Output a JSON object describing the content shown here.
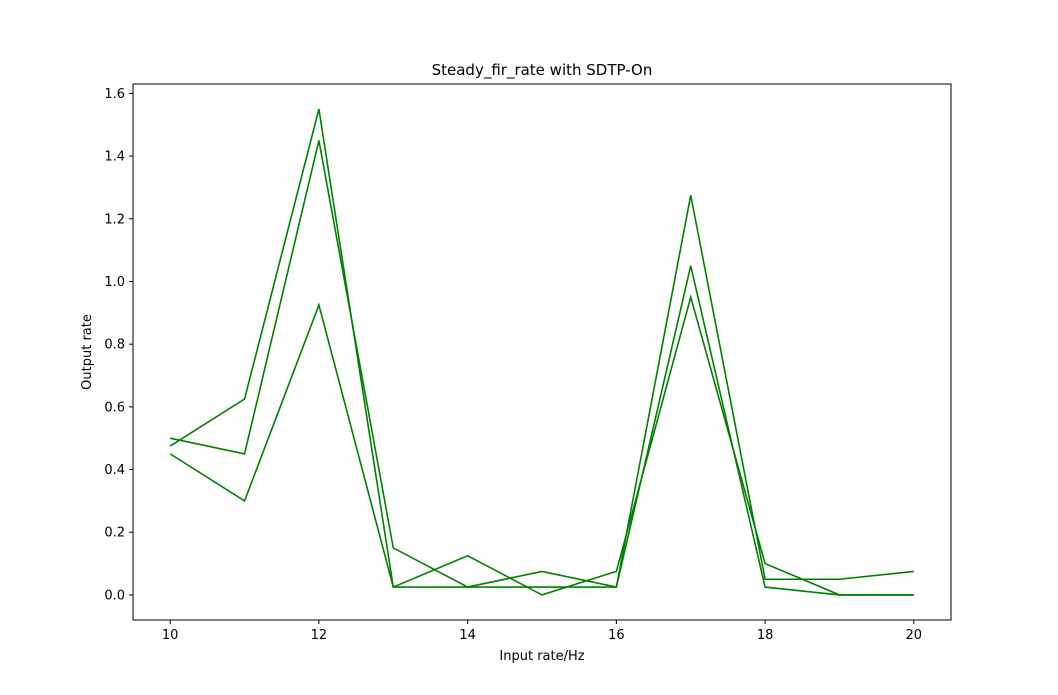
{
  "chart_data": {
    "type": "line",
    "title": "Steady_fir_rate with SDTP-On",
    "xlabel": "Input rate/Hz",
    "ylabel": "Output rate",
    "xlim": [
      9.5,
      20.5
    ],
    "ylim": [
      -0.08,
      1.63
    ],
    "xticks": [
      10,
      12,
      14,
      16,
      18,
      20
    ],
    "yticks": [
      0.0,
      0.2,
      0.4,
      0.6,
      0.8,
      1.0,
      1.2,
      1.4,
      1.6
    ],
    "ytick_labels": [
      "0.0",
      "0.2",
      "0.4",
      "0.6",
      "0.8",
      "1.0",
      "1.2",
      "1.4",
      "1.6"
    ],
    "grid": false,
    "line_color": "#008000",
    "x": [
      10,
      11,
      12,
      13,
      14,
      15,
      16,
      17,
      18,
      19,
      20
    ],
    "series": [
      {
        "values": [
          0.475,
          0.625,
          1.55,
          0.025,
          0.025,
          0.075,
          0.025,
          1.275,
          0.05,
          0.05,
          0.075
        ]
      },
      {
        "values": [
          0.5,
          0.45,
          1.45,
          0.15,
          0.025,
          0.025,
          0.025,
          1.05,
          0.025,
          0.0,
          0.0
        ]
      },
      {
        "values": [
          0.45,
          0.3,
          0.925,
          0.025,
          0.125,
          0.0,
          0.075,
          0.95,
          0.1,
          0.0,
          0.0
        ]
      }
    ]
  }
}
